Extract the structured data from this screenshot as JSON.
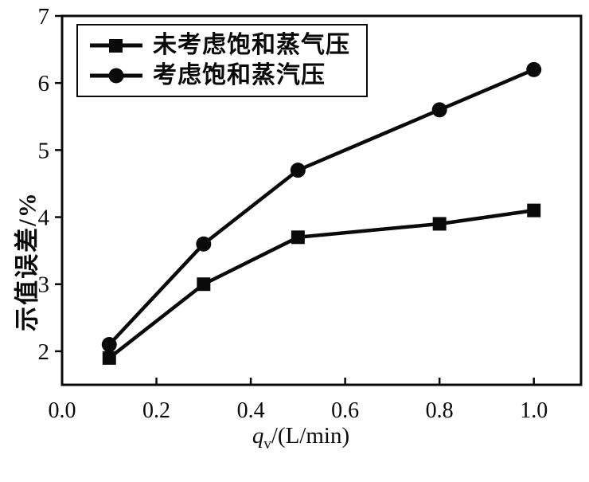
{
  "chart_data": {
    "type": "line",
    "x": [
      0.1,
      0.3,
      0.5,
      0.8,
      1.0
    ],
    "series": [
      {
        "name": "未考虑饱和蒸气压",
        "marker": "square",
        "values": [
          1.9,
          3.0,
          3.7,
          3.9,
          4.1
        ]
      },
      {
        "name": "考虑饱和蒸汽压",
        "marker": "circle",
        "values": [
          2.1,
          3.6,
          4.7,
          5.6,
          6.2
        ]
      }
    ],
    "title": "",
    "xlabel": "qv/(L/min)",
    "xlabel_parts": {
      "symbol": "q",
      "subscript": "v",
      "rest": "/(L/min)"
    },
    "ylabel": "示值误差/%",
    "x_ticks": [
      0.0,
      0.2,
      0.4,
      0.6,
      0.8,
      1.0
    ],
    "x_tick_labels": [
      "0.0",
      "0.2",
      "0.4",
      "0.6",
      "0.8",
      "1.0"
    ],
    "y_ticks": [
      2,
      3,
      4,
      5,
      6,
      7
    ],
    "y_tick_labels": [
      "2",
      "3",
      "4",
      "5",
      "6",
      "7"
    ],
    "xlim": [
      0.0,
      1.1
    ],
    "ylim": [
      1.5,
      7.0
    ],
    "grid": false,
    "legend_position": "top-left",
    "colors": {
      "line": "#0a0a0a",
      "background": "#ffffff"
    }
  }
}
